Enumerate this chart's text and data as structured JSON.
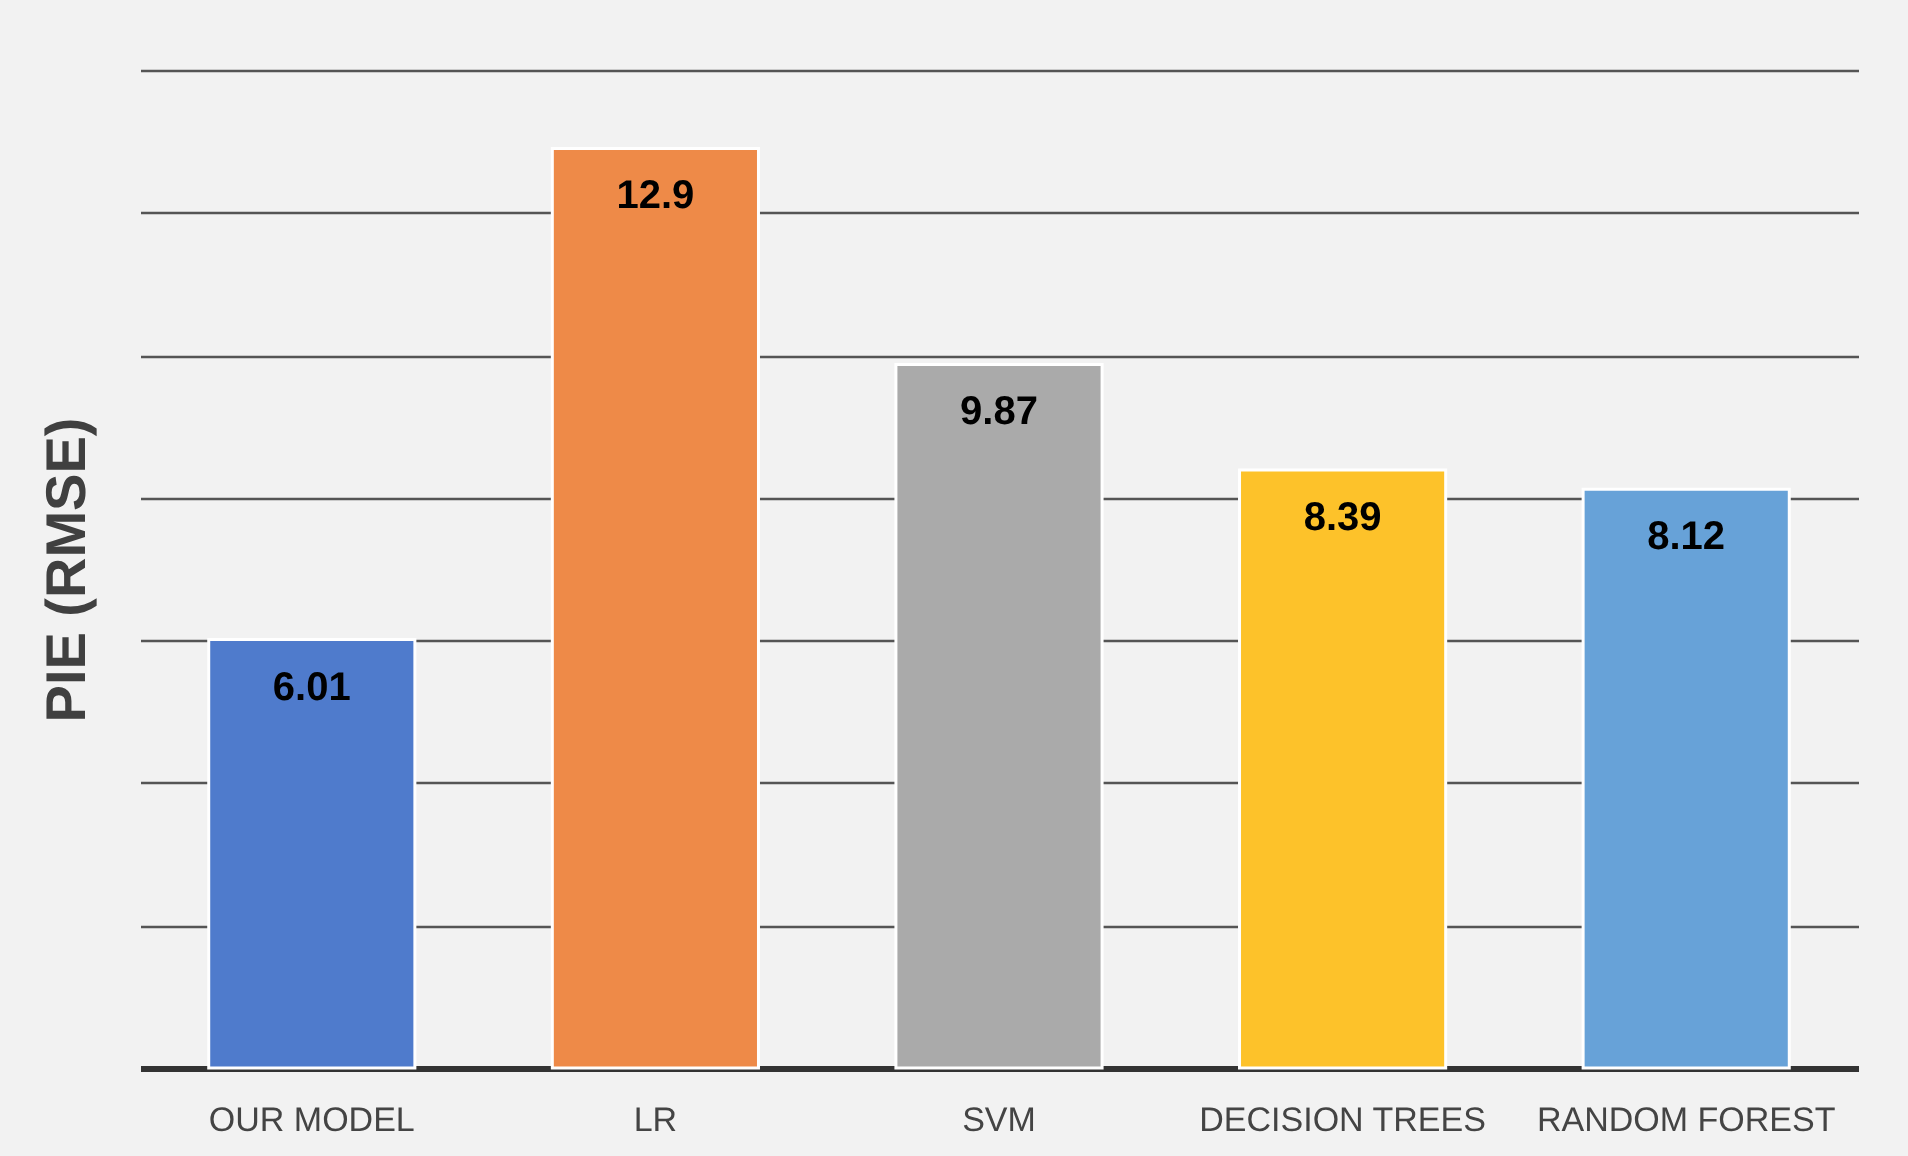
{
  "chart_data": {
    "type": "bar",
    "ylabel": "PIE (RMSE)",
    "categories": [
      "OUR MODEL",
      "LR",
      "SVM",
      "DECISION TREES",
      "RANDOM FOREST"
    ],
    "values": [
      6.01,
      12.9,
      9.87,
      8.39,
      8.12
    ],
    "colors": [
      "#4f7bcc",
      "#ee8a48",
      "#aaaaaa",
      "#fdc22a",
      "#67a2d8"
    ],
    "data_labels": true,
    "ylim": [
      0,
      14
    ],
    "yticks": [
      {
        "value": 0,
        "label": null
      },
      {
        "value": 2,
        "label": null
      },
      {
        "value": 4,
        "label": null
      },
      {
        "value": 6,
        "label": null
      },
      {
        "value": 8,
        "label": null
      },
      {
        "value": 10,
        "label": null
      },
      {
        "value": 12,
        "label": null
      },
      {
        "value": 14,
        "label": null
      }
    ],
    "grid": "y",
    "legend": false
  }
}
